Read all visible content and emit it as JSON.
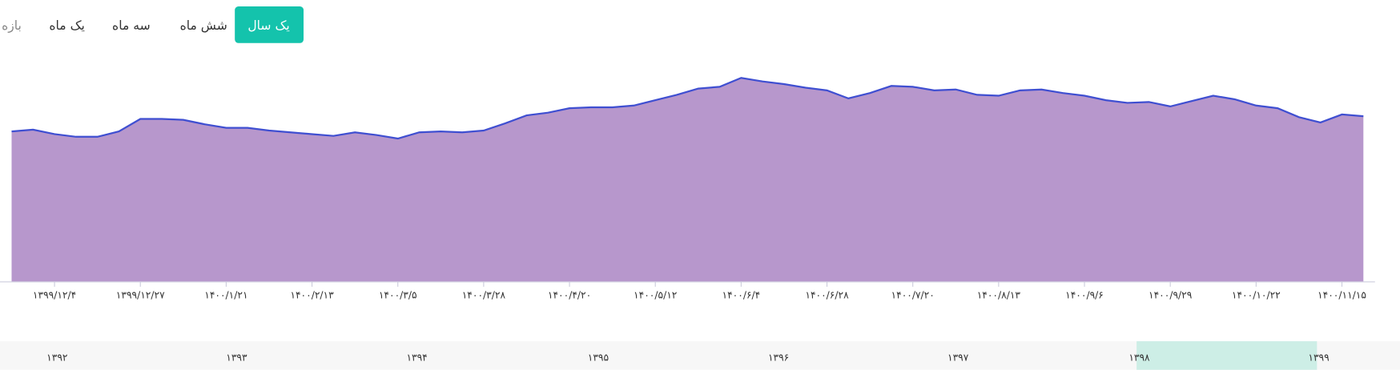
{
  "ui": {
    "range_buttons": [
      "یک سال",
      "شش ماه",
      "سه ماه",
      "یک ماه",
      "بازه"
    ],
    "active": "یک سال"
  },
  "chart_data": {
    "type": "area",
    "categories": [
      null,
      null,
      "۱۳۹۹/۱۲/۴",
      null,
      null,
      null,
      "۱۳۹۹/۱۲/۲۷",
      null,
      null,
      null,
      "۱۴۰۰/۱/۲۱",
      null,
      null,
      null,
      "۱۴۰۰/۲/۱۳",
      null,
      null,
      null,
      "۱۴۰۰/۳/۵",
      null,
      null,
      null,
      "۱۴۰۰/۳/۲۸",
      null,
      null,
      null,
      "۱۴۰۰/۴/۲۰",
      null,
      null,
      null,
      "۱۴۰۰/۵/۱۲",
      null,
      null,
      null,
      "۱۴۰۰/۶/۴",
      null,
      null,
      null,
      "۱۴۰۰/۶/۲۸",
      null,
      null,
      null,
      "۱۴۰۰/۷/۲۰",
      null,
      null,
      null,
      "۱۴۰۰/۸/۱۳",
      null,
      null,
      null,
      "۱۴۰۰/۹/۶",
      null,
      null,
      null,
      "۱۴۰۰/۹/۲۹",
      null,
      null,
      null,
      "۱۴۰۰/۱۰/۲۲",
      null,
      null,
      null,
      "۱۴۰۰/۱۱/۱۵",
      null
    ],
    "values": [
      67.2,
      68,
      66,
      64.8,
      64.8,
      67.2,
      72.8,
      72.8,
      72.4,
      70.4,
      68.8,
      68.8,
      67.6,
      66.8,
      66,
      65.2,
      66.8,
      65.6,
      64,
      66.8,
      67.2,
      66.8,
      67.6,
      70.8,
      74.4,
      75.6,
      77.6,
      78,
      78,
      78.8,
      81.2,
      83.6,
      86.4,
      87.2,
      91.2,
      89.6,
      88.4,
      86.8,
      85.6,
      82,
      84.4,
      87.6,
      87.2,
      85.6,
      86,
      83.6,
      83.2,
      85.6,
      86,
      84.4,
      83.2,
      81.2,
      80,
      80.4,
      78.4,
      80.8,
      83.2,
      81.6,
      78.8,
      77.6,
      73.6,
      71.2,
      74.8,
      74
    ],
    "ylim": [
      0,
      100
    ],
    "line_color": "#3f4fd1",
    "fill_color": "#b797cc"
  },
  "navigator": {
    "labels": [
      "۱۳۹۲",
      "۱۳۹۳",
      "۱۳۹۴",
      "۱۳۹۵",
      "۱۳۹۶",
      "۱۳۹۷",
      "۱۳۹۸",
      "۱۳۹۹"
    ]
  }
}
